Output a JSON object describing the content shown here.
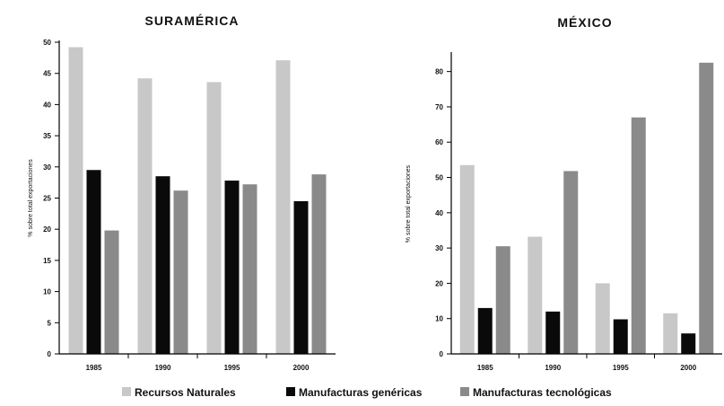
{
  "chart_data": [
    {
      "type": "bar",
      "title": "SURAMÉRICA",
      "ylabel": "% sobre total exportaciones",
      "xlabel": "",
      "categories": [
        "1985",
        "1990",
        "1995",
        "2000"
      ],
      "ylim": [
        0,
        50
      ],
      "yticks": [
        0,
        5,
        10,
        15,
        20,
        25,
        30,
        35,
        40,
        45,
        50
      ],
      "series": [
        {
          "name": "Recursos Naturales",
          "values": [
            49.2,
            44.2,
            43.6,
            47.1
          ]
        },
        {
          "name": "Manufacturas genéricas",
          "values": [
            29.5,
            28.5,
            27.8,
            24.5
          ]
        },
        {
          "name": "Manufacturas tecnológicas",
          "values": [
            19.8,
            26.2,
            27.2,
            28.8
          ]
        }
      ]
    },
    {
      "type": "bar",
      "title": "MÉXICO",
      "ylabel": "% sobre total exportaciones",
      "xlabel": "",
      "categories": [
        "1985",
        "1990",
        "1995",
        "2000"
      ],
      "ylim": [
        0,
        85
      ],
      "yticks": [
        0,
        10,
        20,
        30,
        40,
        50,
        60,
        70,
        80
      ],
      "series": [
        {
          "name": "Recursos Naturales",
          "values": [
            53.5,
            33.2,
            20.0,
            11.5
          ]
        },
        {
          "name": "Manufacturas genéricas",
          "values": [
            13.0,
            12.0,
            9.8,
            5.8
          ]
        },
        {
          "name": "Manufacturas tecnológicas",
          "values": [
            30.5,
            51.8,
            67.0,
            82.5
          ]
        }
      ]
    }
  ],
  "legend": {
    "position": "bottom",
    "items": [
      {
        "label": "Recursos Naturales",
        "color": "#c8c8c8"
      },
      {
        "label": "Manufacturas genéricas",
        "color": "#0a0a0a"
      },
      {
        "label": "Manufacturas tecnológicas",
        "color": "#8a8a8a"
      }
    ]
  },
  "colors": [
    "#c8c8c8",
    "#0a0a0a",
    "#8a8a8a"
  ]
}
